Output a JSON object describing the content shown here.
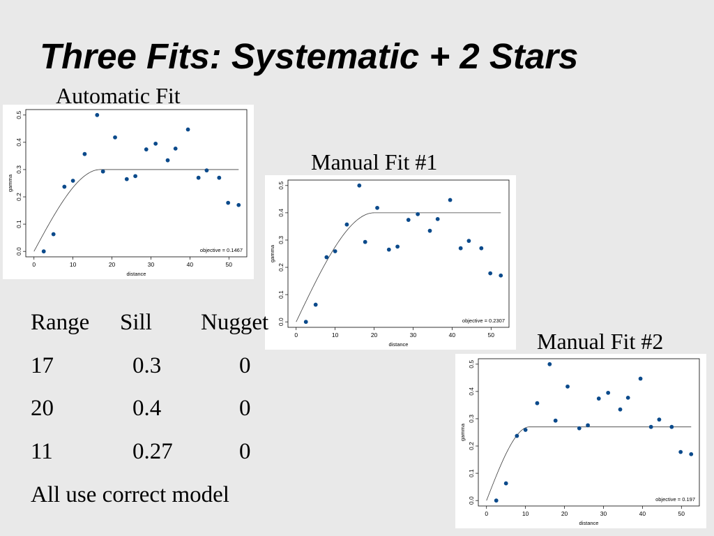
{
  "slide": {
    "title": "Three Fits: Systematic + 2 Stars"
  },
  "colors": {
    "background": "#e9e9e9",
    "plot_background": "#ffffff",
    "point": "#0b4a8b",
    "fit_line": "#3c3c3c"
  },
  "table": {
    "headers": [
      "Range",
      "Sill",
      "Nugget"
    ],
    "rows": [
      [
        "17",
        "0.3",
        "0"
      ],
      [
        "20",
        "0.4",
        "0"
      ],
      [
        "11",
        "0.27",
        "0"
      ]
    ],
    "note": "All use correct model"
  },
  "chart_data": [
    {
      "type": "scatter",
      "title": "Automatic Fit",
      "xlabel": "distance",
      "ylabel": "gamma",
      "xlim": [
        0,
        52.5
      ],
      "ylim": [
        0,
        0.5
      ],
      "xticks": [
        "0",
        "10",
        "20",
        "30",
        "40",
        "50"
      ],
      "yticks": [
        "0.0",
        "0.1",
        "0.2",
        "0.3",
        "0.4",
        "0.5"
      ],
      "grid": false,
      "annotation": "objective = 0.1467",
      "series": [
        {
          "x": [
            2.5,
            5.0,
            7.8,
            10.0,
            13.0,
            16.2,
            17.7,
            20.8,
            23.8,
            26.0,
            28.8,
            31.2,
            34.3,
            36.3,
            39.5,
            42.2,
            44.3,
            47.5,
            49.8,
            52.5
          ],
          "y": [
            0.0,
            0.063,
            0.237,
            0.259,
            0.357,
            0.5,
            0.293,
            0.418,
            0.265,
            0.276,
            0.374,
            0.395,
            0.334,
            0.377,
            0.447,
            0.27,
            0.297,
            0.27,
            0.178,
            0.17
          ]
        }
      ],
      "fit_line": {
        "range": 17,
        "sill": 0.3,
        "nugget": 0
      }
    },
    {
      "type": "scatter",
      "title": "Manual Fit #1",
      "xlabel": "distance",
      "ylabel": "gamma",
      "xlim": [
        0,
        52.5
      ],
      "ylim": [
        0,
        0.5
      ],
      "xticks": [
        "0",
        "10",
        "20",
        "30",
        "40",
        "50"
      ],
      "yticks": [
        "0.0",
        "0.1",
        "0.2",
        "0.3",
        "0.4",
        "0.5"
      ],
      "grid": false,
      "annotation": "objective = 0.2307",
      "series": [
        {
          "x": [
            2.5,
            5.0,
            7.8,
            10.0,
            13.0,
            16.2,
            17.7,
            20.8,
            23.8,
            26.0,
            28.8,
            31.2,
            34.3,
            36.3,
            39.5,
            42.2,
            44.3,
            47.5,
            49.8,
            52.5
          ],
          "y": [
            0.0,
            0.063,
            0.237,
            0.259,
            0.357,
            0.5,
            0.293,
            0.418,
            0.265,
            0.276,
            0.374,
            0.395,
            0.334,
            0.377,
            0.447,
            0.27,
            0.297,
            0.27,
            0.178,
            0.17
          ]
        }
      ],
      "fit_line": {
        "range": 20,
        "sill": 0.4,
        "nugget": 0
      }
    },
    {
      "type": "scatter",
      "title": "Manual Fit #2",
      "xlabel": "distance",
      "ylabel": "gamma",
      "xlim": [
        0,
        52.5
      ],
      "ylim": [
        0,
        0.5
      ],
      "xticks": [
        "0",
        "10",
        "20",
        "30",
        "40",
        "50"
      ],
      "yticks": [
        "0.0",
        "0.1",
        "0.2",
        "0.3",
        "0.4",
        "0.5"
      ],
      "grid": false,
      "annotation": "objective = 0.197",
      "series": [
        {
          "x": [
            2.5,
            5.0,
            7.8,
            10.0,
            13.0,
            16.2,
            17.7,
            20.8,
            23.8,
            26.0,
            28.8,
            31.2,
            34.3,
            36.3,
            39.5,
            42.2,
            44.3,
            47.5,
            49.8,
            52.5
          ],
          "y": [
            0.0,
            0.063,
            0.237,
            0.259,
            0.357,
            0.5,
            0.293,
            0.418,
            0.265,
            0.276,
            0.374,
            0.395,
            0.334,
            0.377,
            0.447,
            0.27,
            0.297,
            0.27,
            0.178,
            0.17
          ]
        }
      ],
      "fit_line": {
        "range": 11,
        "sill": 0.27,
        "nugget": 0
      }
    }
  ]
}
